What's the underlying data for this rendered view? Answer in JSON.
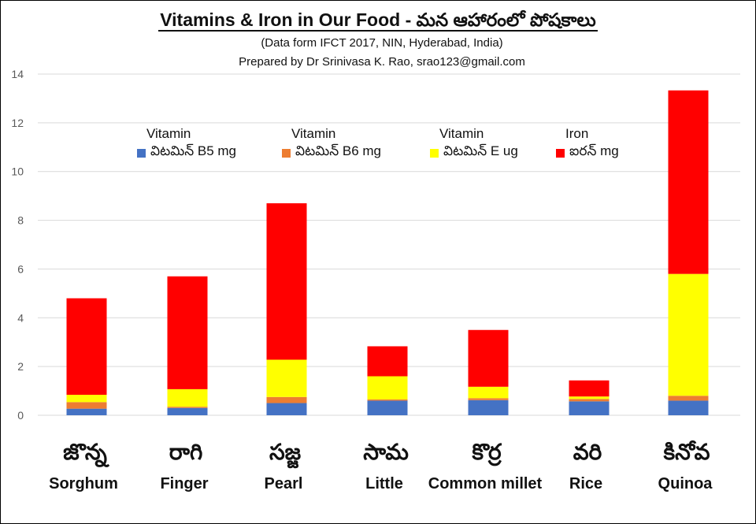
{
  "title": "Vitamins & Iron in Our Food -  మన  ఆహారంలో పోషకాలు",
  "subtitle": "(Data form IFCT 2017, NIN,  Hyderabad, India)",
  "author": "Prepared by Dr Srinivasa K. Rao, srao123@gmail.com",
  "legend": [
    {
      "header": "Vitamin",
      "label": "విటమిన్ B5 mg",
      "color": "#4472c4"
    },
    {
      "header": "Vitamin",
      "label": "విటమిన్ B6  mg",
      "color": "#ed7d31"
    },
    {
      "header": "Vitamin",
      "label": "విటమిన్ E ug",
      "color": "#ffff00"
    },
    {
      "header": "Iron",
      "label": "ఐరన్ mg",
      "color": "#ff0000"
    }
  ],
  "chart_data": {
    "type": "bar",
    "stacked": true,
    "categories": [
      "Sorghum",
      "Finger",
      "Pearl",
      "Little",
      "Common millet",
      "Rice",
      "Quinoa"
    ],
    "category_labels_te": [
      "జొన్న",
      "రాగి",
      "సజ్జ",
      "సామ",
      "కొర్ర",
      "వరి",
      "కినోవ"
    ],
    "series": [
      {
        "name": "విటమిన్ B5 mg",
        "color": "#4472c4",
        "values": [
          0.27,
          0.3,
          0.5,
          0.6,
          0.62,
          0.57,
          0.6
        ]
      },
      {
        "name": "విటమిన్ B6  mg",
        "color": "#ed7d31",
        "values": [
          0.27,
          0.05,
          0.25,
          0.05,
          0.08,
          0.1,
          0.2
        ]
      },
      {
        "name": "విటమిన్ E ug",
        "color": "#ffff00",
        "values": [
          0.3,
          0.72,
          1.53,
          0.95,
          0.47,
          0.1,
          5.0
        ]
      },
      {
        "name": "ఐరన్ mg",
        "color": "#ff0000",
        "values": [
          3.96,
          4.63,
          6.42,
          1.23,
          2.33,
          0.66,
          7.53
        ]
      }
    ],
    "ylim": [
      0,
      14
    ],
    "yticks": [
      0,
      2,
      4,
      6,
      8,
      10,
      12,
      14
    ],
    "grid": true
  }
}
